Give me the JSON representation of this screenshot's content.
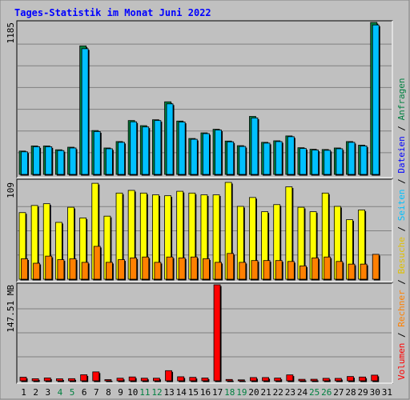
{
  "title": "Tages-Statistik im Monat Juni 2022",
  "colors": {
    "background": "#c0c0c0",
    "frame": "#ffffff",
    "title": "#0000ff",
    "grid": "#808080",
    "requests": "#008040",
    "files": "#00c0ff",
    "files_dark": "#008080",
    "pages": "#0060ff",
    "visits": "#ffff00",
    "sites": "#ff8000",
    "volume": "#ff0000",
    "tick_weekday": "#000000",
    "tick_weekend": "#008040"
  },
  "right_legend": {
    "top": [
      {
        "text": "Anfragen",
        "color": "#008040"
      },
      {
        "text": " / ",
        "color": "#000000"
      },
      {
        "text": "Dateien",
        "color": "#0000ff"
      },
      {
        "text": " / ",
        "color": "#000000"
      },
      {
        "text": "Seiten",
        "color": "#00c0ff"
      },
      {
        "text": " / ",
        "color": "#000000"
      },
      {
        "text": "Besuche",
        "color": "#e0c000"
      },
      {
        "text": " / ",
        "color": "#000000"
      },
      {
        "text": "Rechner",
        "color": "#ff8000"
      },
      {
        "text": " / ",
        "color": "#000000"
      },
      {
        "text": "Volumen",
        "color": "#ff0000"
      }
    ]
  },
  "chart_data": [
    {
      "type": "bar",
      "panel": "top",
      "y_max_label": "1185",
      "ylim": [
        0,
        1185
      ],
      "categories": [
        "1",
        "2",
        "3",
        "4",
        "5",
        "6",
        "7",
        "8",
        "9",
        "10",
        "11",
        "12",
        "13",
        "14",
        "15",
        "16",
        "17",
        "18",
        "19",
        "20",
        "21",
        "22",
        "23",
        "24",
        "25",
        "26",
        "27",
        "28",
        "29",
        "30",
        "31"
      ],
      "series": [
        {
          "name": "Anfragen",
          "values": [
            182,
            222,
            222,
            192,
            212,
            1002,
            342,
            206,
            256,
            420,
            380,
            426,
            566,
            416,
            280,
            324,
            352,
            260,
            224,
            452,
            250,
            262,
            300,
            208,
            196,
            194,
            206,
            256,
            228,
            1185,
            0
          ]
        },
        {
          "name": "Dateien",
          "values": [
            176,
            216,
            216,
            186,
            206,
            980,
            334,
            200,
            250,
            410,
            370,
            420,
            550,
            408,
            274,
            318,
            346,
            254,
            218,
            440,
            244,
            256,
            294,
            202,
            190,
            188,
            200,
            250,
            222,
            1165,
            0
          ]
        }
      ]
    },
    {
      "type": "bar",
      "panel": "middle",
      "y_max_label": "109",
      "ylim": [
        0,
        109
      ],
      "categories": [
        "1",
        "2",
        "3",
        "4",
        "5",
        "6",
        "7",
        "8",
        "9",
        "10",
        "11",
        "12",
        "13",
        "14",
        "15",
        "16",
        "17",
        "18",
        "19",
        "20",
        "21",
        "22",
        "23",
        "24",
        "25",
        "26",
        "27",
        "28",
        "29",
        "30",
        "31"
      ],
      "series": [
        {
          "name": "Besuche",
          "values": [
            75,
            83,
            85,
            64,
            81,
            69,
            108,
            71,
            97,
            100,
            97,
            95,
            94,
            99,
            97,
            95,
            95,
            109,
            82,
            92,
            76,
            84,
            104,
            81,
            76,
            97,
            82,
            67,
            78,
            0,
            0
          ]
        },
        {
          "name": "Rechner",
          "values": [
            23,
            18,
            26,
            22,
            23,
            19,
            37,
            19,
            22,
            24,
            25,
            19,
            25,
            24,
            25,
            23,
            19,
            29,
            19,
            21,
            21,
            21,
            20,
            15,
            24,
            25,
            20,
            17,
            17,
            28,
            0
          ]
        }
      ]
    },
    {
      "type": "bar",
      "panel": "bottom",
      "y_max_label": "147.51 MB",
      "ylim": [
        0,
        147.51
      ],
      "categories": [
        "1",
        "2",
        "3",
        "4",
        "5",
        "6",
        "7",
        "8",
        "9",
        "10",
        "11",
        "12",
        "13",
        "14",
        "15",
        "16",
        "17",
        "18",
        "19",
        "20",
        "21",
        "22",
        "23",
        "24",
        "25",
        "26",
        "27",
        "28",
        "29",
        "30",
        "31"
      ],
      "series": [
        {
          "name": "Volumen",
          "values": [
            5.5,
            3.2,
            4.4,
            3.1,
            3.3,
            9.3,
            13.7,
            1.8,
            4.0,
            5.9,
            4.0,
            4.0,
            15.6,
            6.2,
            5.3,
            4.3,
            147.51,
            2.1,
            1.5,
            5.0,
            5.0,
            4.2,
            9.1,
            2.3,
            2.4,
            3.8,
            3.7,
            6.6,
            5.8,
            8.7,
            0
          ]
        }
      ]
    }
  ],
  "weekend_days": [
    4,
    5,
    11,
    12,
    18,
    19,
    25,
    26
  ]
}
